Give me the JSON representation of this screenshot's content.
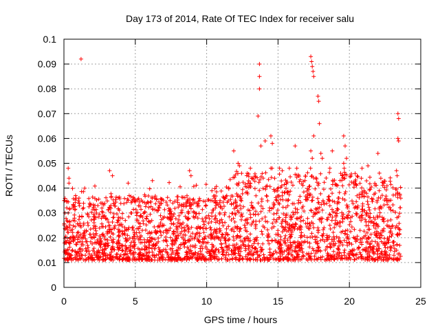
{
  "chart_data": {
    "type": "scatter",
    "title": "Day 173 of 2014, Rate Of TEC Index for receiver salu",
    "xlabel": "GPS time / hours",
    "ylabel": "ROTI / TECUs",
    "xlim": [
      0,
      25
    ],
    "ylim": [
      0,
      0.1
    ],
    "x_ticks": [
      0,
      5,
      10,
      15,
      20,
      25
    ],
    "x_tick_labels": [
      "0",
      "5",
      "10",
      "15",
      "20",
      "25"
    ],
    "y_ticks": [
      0,
      0.01,
      0.02,
      0.03,
      0.04,
      0.05,
      0.06,
      0.07,
      0.08,
      0.09,
      0.1
    ],
    "y_tick_labels": [
      "0",
      "0.01",
      "0.02",
      "0.03",
      "0.04",
      "0.05",
      "0.06",
      "0.07",
      "0.08",
      "0.09",
      "0.1"
    ],
    "grid": true,
    "marker": "+",
    "series": [
      {
        "name": "ROTI",
        "color": "#ff0000",
        "x_range": [
          0,
          23.6
        ],
        "typical_band": [
          0.005,
          0.035
        ],
        "outliers": [
          {
            "x": 0.3,
            "y": 0.048
          },
          {
            "x": 0.35,
            "y": 0.044
          },
          {
            "x": 0.35,
            "y": 0.042
          },
          {
            "x": 1.2,
            "y": 0.092
          },
          {
            "x": 3.2,
            "y": 0.047
          },
          {
            "x": 3.4,
            "y": 0.045
          },
          {
            "x": 4.5,
            "y": 0.042
          },
          {
            "x": 6.2,
            "y": 0.043
          },
          {
            "x": 8.8,
            "y": 0.047
          },
          {
            "x": 8.9,
            "y": 0.045
          },
          {
            "x": 11.9,
            "y": 0.055
          },
          {
            "x": 12.2,
            "y": 0.05
          },
          {
            "x": 12.3,
            "y": 0.049
          },
          {
            "x": 13.7,
            "y": 0.09
          },
          {
            "x": 13.7,
            "y": 0.085
          },
          {
            "x": 13.7,
            "y": 0.08
          },
          {
            "x": 13.6,
            "y": 0.069
          },
          {
            "x": 13.8,
            "y": 0.057
          },
          {
            "x": 14.1,
            "y": 0.059
          },
          {
            "x": 14.5,
            "y": 0.061
          },
          {
            "x": 14.6,
            "y": 0.058
          },
          {
            "x": 15.3,
            "y": 0.047
          },
          {
            "x": 16.2,
            "y": 0.057
          },
          {
            "x": 17.3,
            "y": 0.093
          },
          {
            "x": 17.35,
            "y": 0.091
          },
          {
            "x": 17.4,
            "y": 0.089
          },
          {
            "x": 17.45,
            "y": 0.087
          },
          {
            "x": 17.5,
            "y": 0.085
          },
          {
            "x": 17.8,
            "y": 0.077
          },
          {
            "x": 17.85,
            "y": 0.075
          },
          {
            "x": 17.9,
            "y": 0.066
          },
          {
            "x": 17.5,
            "y": 0.061
          },
          {
            "x": 17.3,
            "y": 0.055
          },
          {
            "x": 17.4,
            "y": 0.052
          },
          {
            "x": 18.0,
            "y": 0.054
          },
          {
            "x": 18.1,
            "y": 0.052
          },
          {
            "x": 18.8,
            "y": 0.055
          },
          {
            "x": 19.6,
            "y": 0.061
          },
          {
            "x": 19.7,
            "y": 0.057
          },
          {
            "x": 19.8,
            "y": 0.052
          },
          {
            "x": 19.6,
            "y": 0.05
          },
          {
            "x": 21.3,
            "y": 0.049
          },
          {
            "x": 22.0,
            "y": 0.054
          },
          {
            "x": 22.1,
            "y": 0.046
          },
          {
            "x": 22.2,
            "y": 0.044
          },
          {
            "x": 23.4,
            "y": 0.07
          },
          {
            "x": 23.45,
            "y": 0.068
          },
          {
            "x": 23.4,
            "y": 0.06
          },
          {
            "x": 23.45,
            "y": 0.059
          },
          {
            "x": 23.3,
            "y": 0.047
          },
          {
            "x": 23.35,
            "y": 0.045
          }
        ]
      }
    ]
  }
}
